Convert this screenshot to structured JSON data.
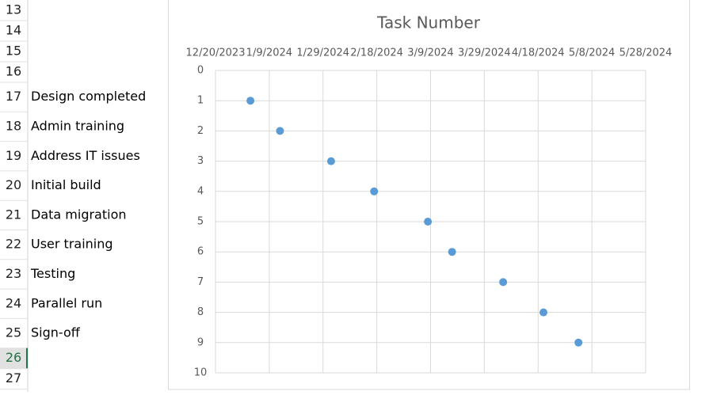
{
  "spreadsheet": {
    "rows": [
      {
        "number": 13
      },
      {
        "number": 14
      },
      {
        "number": 15
      },
      {
        "number": 16
      },
      {
        "number": 17,
        "text": "Design completed"
      },
      {
        "number": 18,
        "text": "Admin training"
      },
      {
        "number": 19,
        "text": "Address IT issues"
      },
      {
        "number": 20,
        "text": "Initial build"
      },
      {
        "number": 21,
        "text": "Data migration"
      },
      {
        "number": 22,
        "text": "User training"
      },
      {
        "number": 23,
        "text": "Testing"
      },
      {
        "number": 24,
        "text": "Parallel run"
      },
      {
        "number": 25,
        "text": "Sign-off"
      },
      {
        "number": 26
      },
      {
        "number": 27
      }
    ]
  },
  "chart_data": {
    "type": "scatter",
    "title": "Task Number",
    "x": [
      45293,
      45304,
      45323,
      45339,
      45359,
      45368,
      45387,
      45402,
      45415
    ],
    "values": [
      1,
      2,
      3,
      4,
      5,
      6,
      7,
      8,
      9
    ],
    "color": "#5b9bd5",
    "xlim": [
      45280,
      45440
    ],
    "xticks": [
      {
        "value": 45280,
        "label": "12/20/2023"
      },
      {
        "value": 45300,
        "label": "1/9/2024"
      },
      {
        "value": 45320,
        "label": "1/29/2024"
      },
      {
        "value": 45340,
        "label": "2/18/2024"
      },
      {
        "value": 45360,
        "label": "3/9/2024"
      },
      {
        "value": 45380,
        "label": "3/29/2024"
      },
      {
        "value": 45400,
        "label": "4/18/2024"
      },
      {
        "value": 45420,
        "label": "5/8/2024"
      },
      {
        "value": 45440,
        "label": "5/28/2024"
      }
    ],
    "ylim": [
      0,
      10
    ],
    "yticks": [
      0,
      1,
      2,
      3,
      4,
      5,
      6,
      7,
      8,
      9,
      10
    ],
    "y_reversed": true,
    "grid": true
  }
}
